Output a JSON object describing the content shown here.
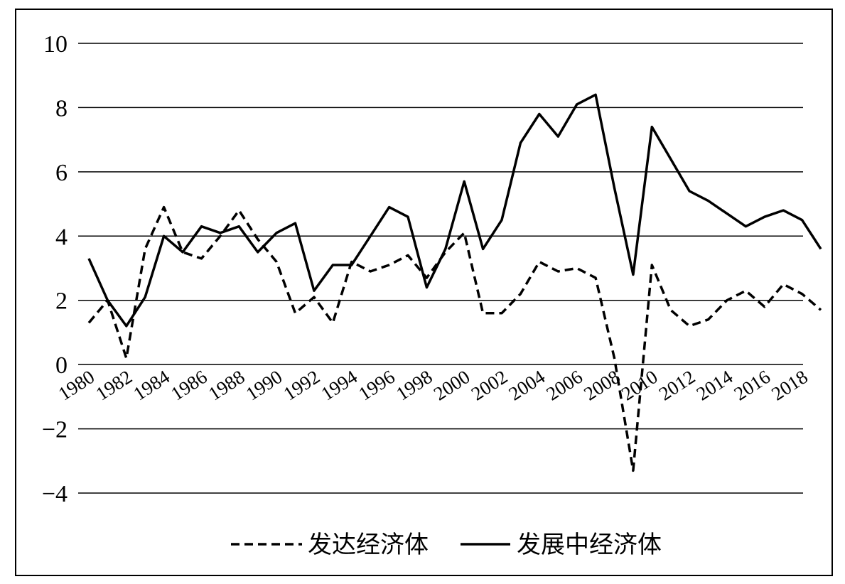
{
  "chart_data": {
    "type": "line",
    "title": "",
    "xlabel": "",
    "ylabel": "",
    "ylim": [
      -4,
      10
    ],
    "yticks": [
      -4,
      -2,
      0,
      2,
      4,
      6,
      8,
      10
    ],
    "xlim": [
      1980,
      2019
    ],
    "xtick_labels": [
      "1980",
      "1982",
      "1984",
      "1986",
      "1988",
      "1990",
      "1992",
      "1994",
      "1996",
      "1998",
      "2000",
      "2002",
      "2004",
      "2006",
      "2008",
      "2010",
      "2012",
      "2014",
      "2016",
      "2018"
    ],
    "grid": "horizontal",
    "legend_position": "bottom-center",
    "x": [
      1980,
      1981,
      1982,
      1983,
      1984,
      1985,
      1986,
      1987,
      1988,
      1989,
      1990,
      1991,
      1992,
      1993,
      1994,
      1995,
      1996,
      1997,
      1998,
      1999,
      2000,
      2001,
      2002,
      2003,
      2004,
      2005,
      2006,
      2007,
      2008,
      2009,
      2010,
      2011,
      2012,
      2013,
      2014,
      2015,
      2016,
      2017,
      2018,
      2019
    ],
    "series": [
      {
        "name": "发达经济体",
        "style": "dashed",
        "color": "#000000",
        "values": [
          1.3,
          2.0,
          0.2,
          3.6,
          4.9,
          3.5,
          3.3,
          4.0,
          4.8,
          3.9,
          3.2,
          1.6,
          2.1,
          1.3,
          3.2,
          2.9,
          3.1,
          3.4,
          2.7,
          3.5,
          4.1,
          1.6,
          1.6,
          2.2,
          3.2,
          2.9,
          3.0,
          2.7,
          0.2,
          -3.3,
          3.1,
          1.7,
          1.2,
          1.4,
          2.0,
          2.3,
          1.8,
          2.5,
          2.2,
          1.7
        ]
      },
      {
        "name": "发展中经济体",
        "style": "solid",
        "color": "#000000",
        "values": [
          3.3,
          2.0,
          1.2,
          2.1,
          4.0,
          3.5,
          4.3,
          4.1,
          4.3,
          3.5,
          4.1,
          4.4,
          2.3,
          3.1,
          3.1,
          4.0,
          4.9,
          4.6,
          2.4,
          3.6,
          5.7,
          3.6,
          4.5,
          6.9,
          7.8,
          7.1,
          8.1,
          8.4,
          5.5,
          2.8,
          7.4,
          6.4,
          5.4,
          5.1,
          4.7,
          4.3,
          4.6,
          4.8,
          4.5,
          3.6
        ]
      }
    ]
  }
}
